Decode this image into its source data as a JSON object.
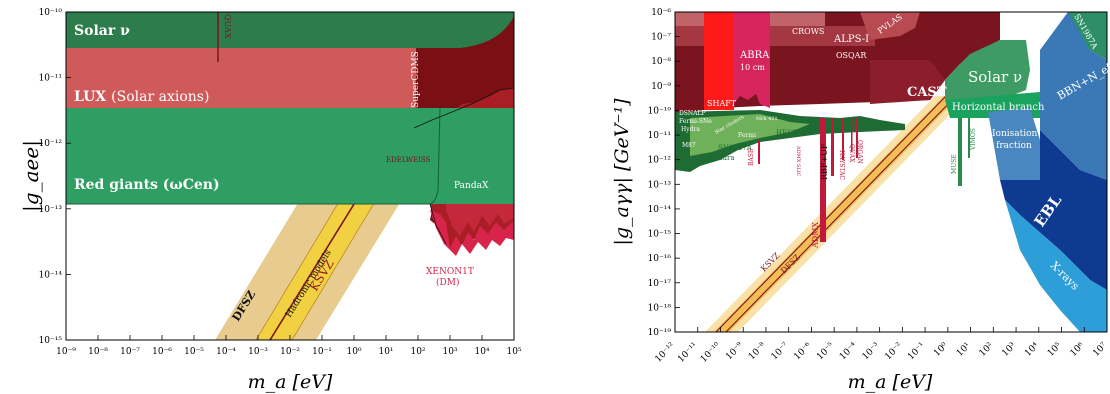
{
  "chart_data": [
    {
      "type": "area",
      "ylabel": "|g_aee|",
      "xlabel": "m_a [eV]",
      "xscale": "log",
      "yscale": "log",
      "xlim": [
        1e-09,
        100000.0
      ],
      "ylim": [
        1e-15,
        1e-10
      ],
      "xticks": [
        "10⁻⁹",
        "10⁻⁸",
        "10⁻⁷",
        "10⁻⁶",
        "10⁻⁵",
        "10⁻⁴",
        "10⁻³",
        "10⁻²",
        "10⁻¹",
        "10⁰",
        "10¹",
        "10²",
        "10³",
        "10⁴",
        "10⁵"
      ],
      "yticks": [
        "10⁻¹⁵",
        "10⁻¹⁴",
        "10⁻¹³",
        "10⁻¹²",
        "10⁻¹¹",
        "10⁻¹⁰"
      ],
      "labels": {
        "solar": "Solar ν",
        "lux": "LUX",
        "lux_sub": "(Solar axions)",
        "rg": "Red giants (ωCen)",
        "quax": "QUAX",
        "supercdms": "SuperCDMS",
        "edelweiss": "EDELWEISS",
        "pandax": "PandaX",
        "xenon1": "XENON1T",
        "xenon2": "(DM)",
        "dfsz": "DFSZ",
        "hadronic": "Hadronic models",
        "ksvz": "KSVZ"
      },
      "regions": [
        {
          "name": "Solar ν",
          "ylog_top": -10,
          "ylog_bottom": -10.55,
          "xlog_range": [
            -9,
            5
          ]
        },
        {
          "name": "LUX (Solar axions)",
          "ylog_top": -10.55,
          "ylog_bottom": -11.45,
          "xlog_range": [
            -9,
            2.5
          ]
        },
        {
          "name": "Red giants (ωCen)",
          "ylog_top": -11.45,
          "ylog_bottom": -12.9,
          "xlog_range": [
            -9,
            5
          ]
        }
      ],
      "colors": {
        "solar": "#2d7d4c",
        "lux": "#cf5a5a",
        "rg": "#2e9e63",
        "dm_dark": "#7a0f14",
        "edelweiss": "#a81e24",
        "pandax": "#c4283a",
        "xenon": "#d8244a",
        "band": "#e8cc8f",
        "band_inner": "#f2d23a"
      }
    },
    {
      "type": "area",
      "ylabel": "|g_aγγ| [GeV⁻¹]",
      "xlabel": "m_a [eV]",
      "xscale": "log",
      "yscale": "log",
      "xlim": [
        1e-12,
        10000000.0
      ],
      "ylim": [
        1e-19,
        1e-06
      ],
      "xticks": [
        "10⁻¹²",
        "10⁻¹¹",
        "10⁻¹⁰",
        "10⁻⁹",
        "10⁻⁸",
        "10⁻⁷",
        "10⁻⁶",
        "10⁻⁵",
        "10⁻⁴",
        "10⁻³",
        "10⁻²",
        "10⁻¹",
        "10⁰",
        "10¹",
        "10²",
        "10³",
        "10⁴",
        "10⁵",
        "10⁶",
        "10⁷"
      ],
      "yticks": [
        "10⁻¹⁹",
        "10⁻¹⁸",
        "10⁻¹⁷",
        "10⁻¹⁶",
        "10⁻¹⁵",
        "10⁻¹⁴",
        "10⁻¹³",
        "10⁻¹²",
        "10⁻¹¹",
        "10⁻¹⁰",
        "10⁻⁹",
        "10⁻⁸",
        "10⁻⁷",
        "10⁻⁶"
      ],
      "labels": {
        "crows": "CROWS",
        "alps": "ALPS-I",
        "pvlas": "PVLAS",
        "osqar": "OSQAR",
        "abra": "ABRA",
        "abra2": "10 cm",
        "shaft": "SHAFT",
        "cast": "CAST",
        "solar": "Solar ν",
        "neutron": "Neutron stars",
        "hb": "Horizontal branch",
        "sn_top": "SN1987A",
        "bbn": "BBN+N_eff",
        "ion1": "Ionisation",
        "ion2": "fraction",
        "ebl": "EBL",
        "xrays": "X-rays",
        "dsnalp": "DSNALP",
        "fermisne": "Fermi-SNe",
        "hydra": "Hydra",
        "ms7": "M87",
        "chandra": "Chandra",
        "sn1987a": "SN1987A",
        "fermi": "Fermi",
        "mrk": "Mrk 421",
        "hess": "HESS",
        "base": "BASE",
        "admxslic": "ADMX SLIC",
        "rbf": "RBF+UF",
        "admx": "ADMX",
        "haystac": "HAYSTAC",
        "organ": "ORGAN",
        "quax": "QUAX",
        "muse": "MUSE",
        "vimos": "VIMOS",
        "ksvz": "KSVZ",
        "dfsz": "DFSZ",
        "star": "Star clusters"
      },
      "colors": {
        "dark": "#7a1520",
        "cast": "#8c1d2b",
        "abra": "#d6245e",
        "shaft": "#ff1a1a",
        "solar": "#3d9b63",
        "hb": "#19a35f",
        "sn": "#2e8f66",
        "bbn": "#3b79b6",
        "ion": "#4a86c0",
        "ebl": "#0f3a91",
        "xrays": "#2e9ed8",
        "green_dark": "#1f6b34",
        "green_light": "#6fb05a",
        "haloscope": "#c2183b",
        "band": "#f5c860"
      }
    }
  ]
}
